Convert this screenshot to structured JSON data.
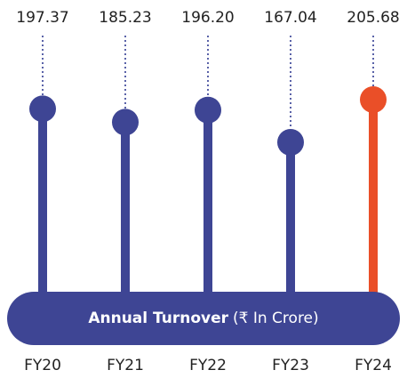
{
  "chart_data": {
    "type": "lollipop",
    "title": "Annual Turnover",
    "subtitle": "(₹ In Crore)",
    "categories": [
      "FY20",
      "FY21",
      "FY22",
      "FY23",
      "FY24"
    ],
    "values": [
      197.37,
      185.23,
      196.2,
      167.04,
      205.68
    ],
    "value_labels": [
      "197.37",
      "185.23",
      "196.20",
      "167.04",
      "205.68"
    ],
    "colors": [
      "#3e4594",
      "#3e4594",
      "#3e4594",
      "#3e4594",
      "#ea4f28"
    ]
  }
}
